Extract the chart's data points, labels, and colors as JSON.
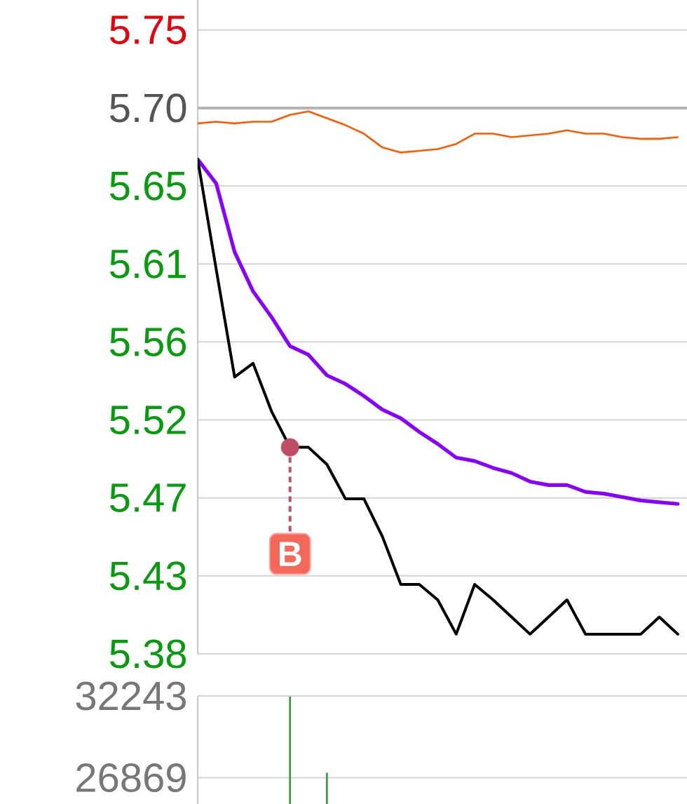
{
  "chart_data": [
    {
      "type": "line",
      "categories": [
        null,
        null,
        null,
        null,
        null,
        null,
        null,
        null,
        null,
        null,
        null,
        null,
        null,
        null,
        null,
        null,
        null,
        null,
        null,
        null,
        null,
        null,
        null,
        null,
        null,
        null,
        null
      ],
      "series": [
        {
          "color": "#ff5a00",
          "values": [
            5.691,
            5.692,
            5.691,
            5.692,
            5.692,
            5.696,
            5.698,
            5.694,
            5.69,
            5.685,
            5.677,
            5.674,
            5.675,
            5.676,
            5.679,
            5.685,
            5.685,
            5.683,
            5.684,
            5.685,
            5.687,
            5.685,
            5.685,
            5.683,
            5.682,
            5.682,
            5.683
          ]
        },
        {
          "color": "#8800ff",
          "values": [
            5.67,
            5.656,
            5.616,
            5.593,
            5.578,
            5.561,
            5.556,
            5.544,
            5.539,
            5.532,
            5.524,
            5.519,
            5.511,
            5.504,
            5.496,
            5.494,
            5.49,
            5.487,
            5.482,
            5.48,
            5.48,
            5.476,
            5.475,
            5.473,
            5.471,
            5.47,
            5.469
          ]
        },
        {
          "color": "#000000",
          "values": [
            5.67,
            5.606,
            5.543,
            5.551,
            5.523,
            5.502,
            5.502,
            5.492,
            5.472,
            5.472,
            5.45,
            5.422,
            5.422,
            5.413,
            5.393,
            5.422,
            5.413,
            5.403,
            5.393,
            5.403,
            5.413,
            5.393,
            5.393,
            5.393,
            5.393,
            5.403,
            5.393
          ]
        },
        {
          "type": "scatter",
          "name": "B",
          "color": "#bf4d66",
          "marker": "circle",
          "values": [
            null,
            null,
            null,
            null,
            null,
            5.502,
            null,
            null,
            null,
            null,
            null,
            null,
            null,
            null,
            null,
            null,
            null,
            null,
            null,
            null,
            null,
            null,
            null,
            null,
            null,
            null,
            null
          ]
        }
      ],
      "ylim": [
        5.3815,
        5.763
      ],
      "yticks": [
        {
          "value": 5.3815,
          "label": "5.38"
        },
        {
          "value": 5.427,
          "label": "5.43"
        },
        {
          "value": 5.4725,
          "label": "5.47"
        },
        {
          "value": 5.518,
          "label": "5.52"
        },
        {
          "value": 5.5635,
          "label": "5.56"
        },
        {
          "value": 5.609,
          "label": "5.61"
        },
        {
          "value": 5.6545,
          "label": "5.65"
        },
        {
          "value": 5.7,
          "label": "5.70"
        },
        {
          "value": 5.7455,
          "label": "5.75"
        }
      ],
      "ref_lines": [
        {
          "axis": "y",
          "value": 5.7,
          "color": "#b4b4b4"
        }
      ],
      "grid": "y",
      "tick_labels": "y"
    },
    {
      "type": "bar",
      "categories": [
        null,
        null,
        null,
        null,
        null,
        null,
        null,
        null,
        null,
        null,
        null,
        null,
        null,
        null,
        null,
        null,
        null,
        null,
        null,
        null,
        null,
        null,
        null,
        null,
        null,
        null,
        null
      ],
      "values": [
        null,
        null,
        null,
        null,
        null,
        32200,
        null,
        27200,
        null,
        null,
        null,
        null,
        null,
        null,
        null,
        null,
        null,
        null,
        null,
        null,
        null,
        null,
        null,
        null,
        null,
        null,
        null
      ],
      "color": "#2e9e2e",
      "ylim": [
        25145,
        32243
      ],
      "yticks": [
        26869,
        32243
      ],
      "grid": "y",
      "tick_labels": "y"
    }
  ]
}
